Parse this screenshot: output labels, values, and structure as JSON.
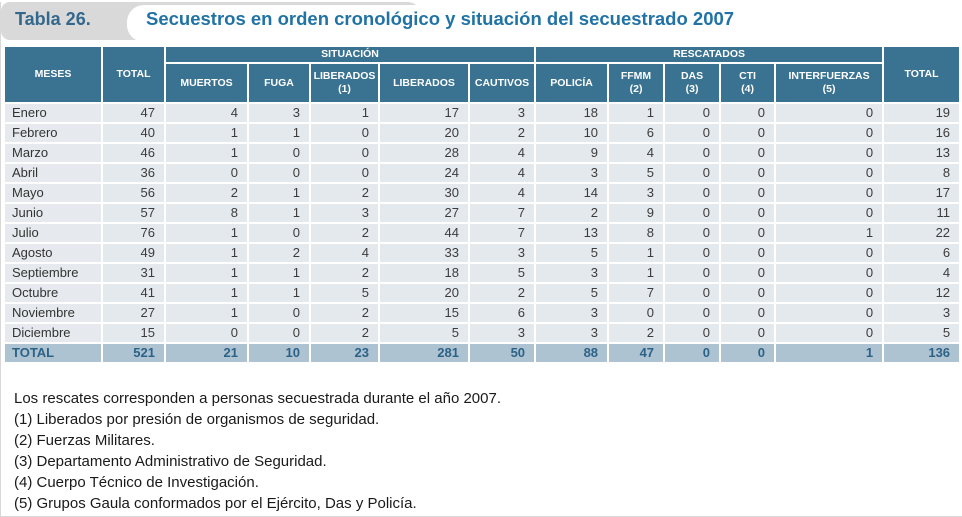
{
  "title_bar": {
    "tab_label": "Tabla 26.",
    "title": "Secuestros en orden cronológico y situación del secuestrado 2007"
  },
  "colors": {
    "header_blue": "#3a7291",
    "title_blue": "#2173a5",
    "tab_label_blue": "#33688c",
    "tab_gray": "#d9d9d9",
    "cell_bg": "#e4e9ee",
    "total_row_bg": "#adc3d2",
    "total_row_text": "#2d6287"
  },
  "table": {
    "header": {
      "meses": "MESES",
      "total_left": "TOTAL",
      "situacion": "SITUACIÓN",
      "rescatados": "RESCATADOS",
      "total_right": "TOTAL",
      "situacion_cols": [
        {
          "label": "MUERTOS",
          "sub": ""
        },
        {
          "label": "FUGA",
          "sub": ""
        },
        {
          "label": "LIBERADOS",
          "sub": "(1)"
        },
        {
          "label": "LIBERADOS",
          "sub": ""
        },
        {
          "label": "CAUTIVOS",
          "sub": ""
        }
      ],
      "rescatados_cols": [
        {
          "label": "POLICÍA",
          "sub": ""
        },
        {
          "label": "FFMM",
          "sub": "(2)"
        },
        {
          "label": "DAS",
          "sub": "(3)"
        },
        {
          "label": "CTI",
          "sub": "(4)"
        },
        {
          "label": "INTERFUERZAS",
          "sub": "(5)"
        }
      ]
    },
    "rows": [
      {
        "mes": "Enero",
        "values": [
          47,
          4,
          3,
          1,
          17,
          3,
          18,
          1,
          0,
          0,
          0,
          19
        ]
      },
      {
        "mes": "Febrero",
        "values": [
          40,
          1,
          1,
          0,
          20,
          2,
          10,
          6,
          0,
          0,
          0,
          16
        ]
      },
      {
        "mes": "Marzo",
        "values": [
          46,
          1,
          0,
          0,
          28,
          4,
          9,
          4,
          0,
          0,
          0,
          13
        ]
      },
      {
        "mes": "Abril",
        "values": [
          36,
          0,
          0,
          0,
          24,
          4,
          3,
          5,
          0,
          0,
          0,
          8
        ]
      },
      {
        "mes": "Mayo",
        "values": [
          56,
          2,
          1,
          2,
          30,
          4,
          14,
          3,
          0,
          0,
          0,
          17
        ]
      },
      {
        "mes": "Junio",
        "values": [
          57,
          8,
          1,
          3,
          27,
          7,
          2,
          9,
          0,
          0,
          0,
          11
        ]
      },
      {
        "mes": "Julio",
        "values": [
          76,
          1,
          0,
          2,
          44,
          7,
          13,
          8,
          0,
          0,
          1,
          22
        ]
      },
      {
        "mes": "Agosto",
        "values": [
          49,
          1,
          2,
          4,
          33,
          3,
          5,
          1,
          0,
          0,
          0,
          6
        ]
      },
      {
        "mes": "Septiembre",
        "values": [
          31,
          1,
          1,
          2,
          18,
          5,
          3,
          1,
          0,
          0,
          0,
          4
        ]
      },
      {
        "mes": "Octubre",
        "values": [
          41,
          1,
          1,
          5,
          20,
          2,
          5,
          7,
          0,
          0,
          0,
          12
        ]
      },
      {
        "mes": "Noviembre",
        "values": [
          27,
          1,
          0,
          2,
          15,
          6,
          3,
          0,
          0,
          0,
          0,
          3
        ]
      },
      {
        "mes": "Diciembre",
        "values": [
          15,
          0,
          0,
          2,
          5,
          3,
          3,
          2,
          0,
          0,
          0,
          5
        ]
      }
    ],
    "total_row": {
      "mes": "TOTAL",
      "values": [
        521,
        21,
        10,
        23,
        281,
        50,
        88,
        47,
        0,
        0,
        1,
        136
      ]
    }
  },
  "footnotes": [
    "Los rescates corresponden a personas secuestrada durante el año 2007.",
    "(1) Liberados por presión de organismos de seguridad.",
    "(2) Fuerzas Militares.",
    "(3) Departamento Administrativo de Seguridad.",
    "(4) Cuerpo Técnico de Investigación.",
    "(5) Grupos Gaula conformados por el Ejército, Das y Policía."
  ]
}
